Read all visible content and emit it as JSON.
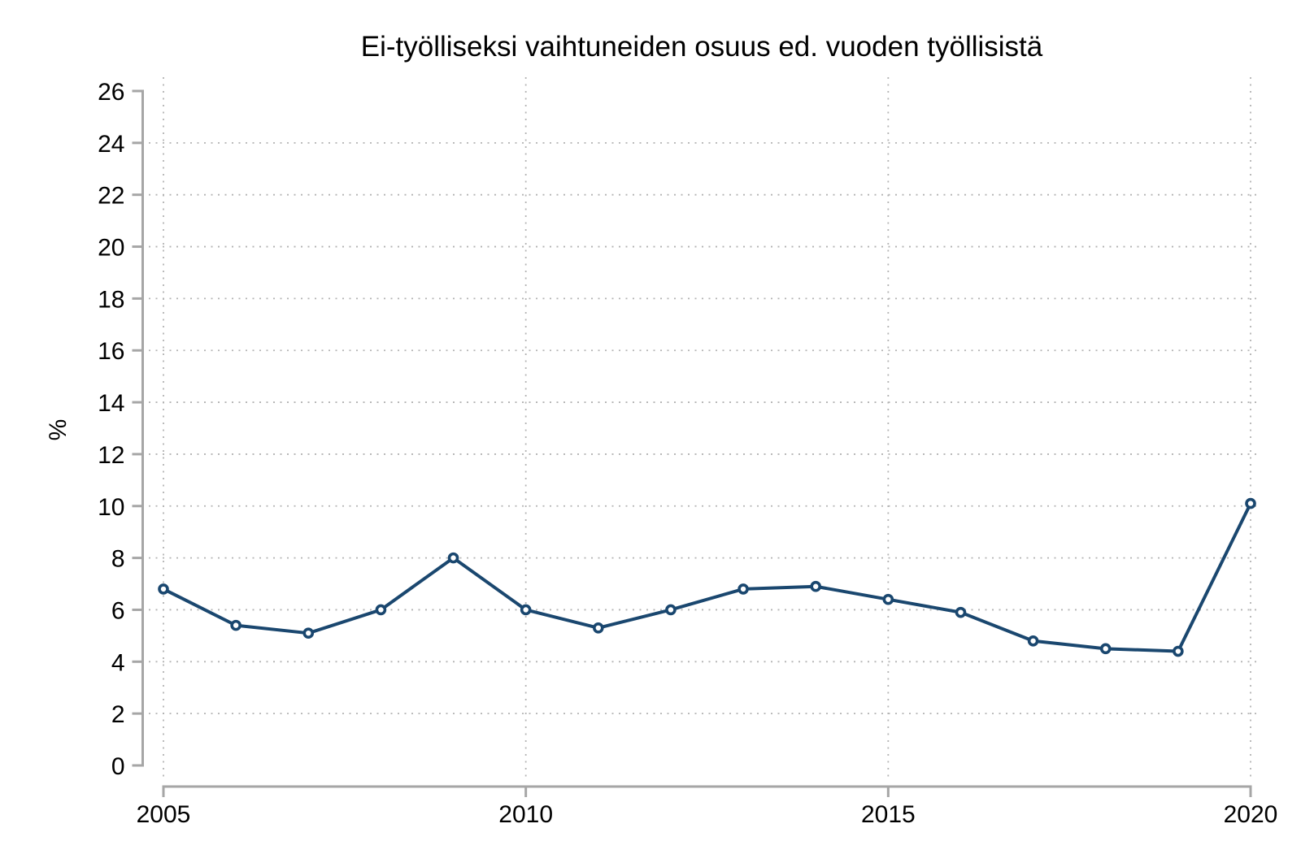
{
  "chart_data": {
    "type": "line",
    "title": "Ei-työlliseksi vaihtuneiden osuus ed. vuoden työllisistä",
    "xlabel": "",
    "ylabel": "%",
    "x": [
      2005,
      2006,
      2007,
      2008,
      2009,
      2010,
      2011,
      2012,
      2013,
      2014,
      2015,
      2016,
      2017,
      2018,
      2019,
      2020
    ],
    "values": [
      6.8,
      5.4,
      5.1,
      6.0,
      8.0,
      6.0,
      5.3,
      6.0,
      6.8,
      6.9,
      6.4,
      5.9,
      4.8,
      4.5,
      4.4,
      10.1
    ],
    "ylim": [
      0,
      26
    ],
    "ytick_interval": 2,
    "yticks": [
      0,
      2,
      4,
      6,
      8,
      10,
      12,
      14,
      16,
      18,
      20,
      22,
      24,
      26
    ],
    "xticks": [
      2005,
      2010,
      2015,
      2020
    ],
    "grid": {
      "horizontal": "dotted",
      "vertical": "dotted",
      "h_gridlines_at": [
        2,
        4,
        6,
        8,
        10,
        12,
        14,
        16,
        18,
        20,
        22,
        24
      ]
    },
    "legend": "none",
    "marker": "open-circle",
    "colors": {
      "line": "#1a476f",
      "marker_fill": "#ffffff",
      "axis": "#a6a6a6",
      "gridline": "#b3b3b3",
      "text": "#000000",
      "background": "#ffffff"
    }
  }
}
